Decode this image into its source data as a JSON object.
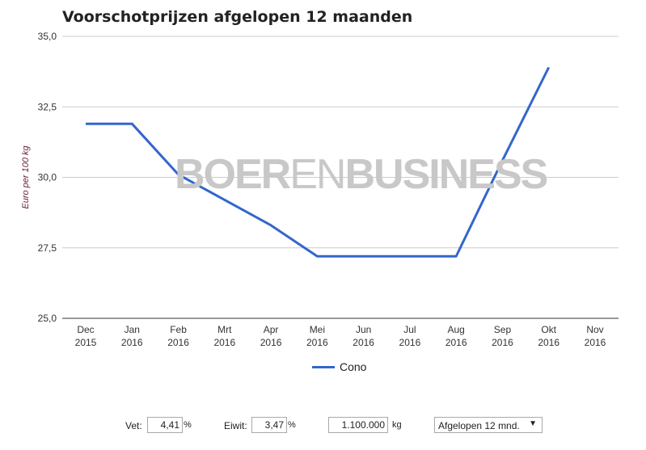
{
  "title": "Voorschotprijzen afgelopen 12 maanden",
  "watermark": {
    "left": "BOER",
    "mid": "EN",
    "right": "BUSINESS"
  },
  "colors": {
    "series": "#3366cc",
    "grid": "#cccccc",
    "ylabel": "#6b1a3d",
    "watermark": "#c8c8c8"
  },
  "controls": {
    "fat_label": "Vet:",
    "fat_value": "4,41",
    "fat_unit": "%",
    "protein_label": "Eiwit:",
    "protein_value": "3,47",
    "protein_unit": "%",
    "volume_value": "1.100.000",
    "volume_unit": "kg",
    "period_select": "Afgelopen 12 mnd.",
    "period_arrow_icon": "▼"
  },
  "chart_data": {
    "type": "line",
    "title": "Voorschotprijzen afgelopen 12 maanden",
    "ylabel": "Euro per 100 kg",
    "xlabel": "",
    "categories": [
      [
        "Dec",
        "2015"
      ],
      [
        "Jan",
        "2016"
      ],
      [
        "Feb",
        "2016"
      ],
      [
        "Mrt",
        "2016"
      ],
      [
        "Apr",
        "2016"
      ],
      [
        "Mei",
        "2016"
      ],
      [
        "Jun",
        "2016"
      ],
      [
        "Jul",
        "2016"
      ],
      [
        "Aug",
        "2016"
      ],
      [
        "Sep",
        "2016"
      ],
      [
        "Okt",
        "2016"
      ],
      [
        "Nov",
        "2016"
      ]
    ],
    "series": [
      {
        "name": "Cono",
        "values": [
          31.9,
          31.9,
          30.1,
          29.2,
          28.3,
          27.2,
          27.2,
          27.2,
          27.2,
          30.6,
          33.9,
          null
        ]
      }
    ],
    "ylim": [
      25.0,
      35.0
    ],
    "yticks": [
      25.0,
      27.5,
      30.0,
      32.5,
      35.0
    ],
    "ytick_labels": [
      "25,0",
      "27,5",
      "30,0",
      "32,5",
      "35,0"
    ],
    "grid": true,
    "legend": "bottom"
  }
}
